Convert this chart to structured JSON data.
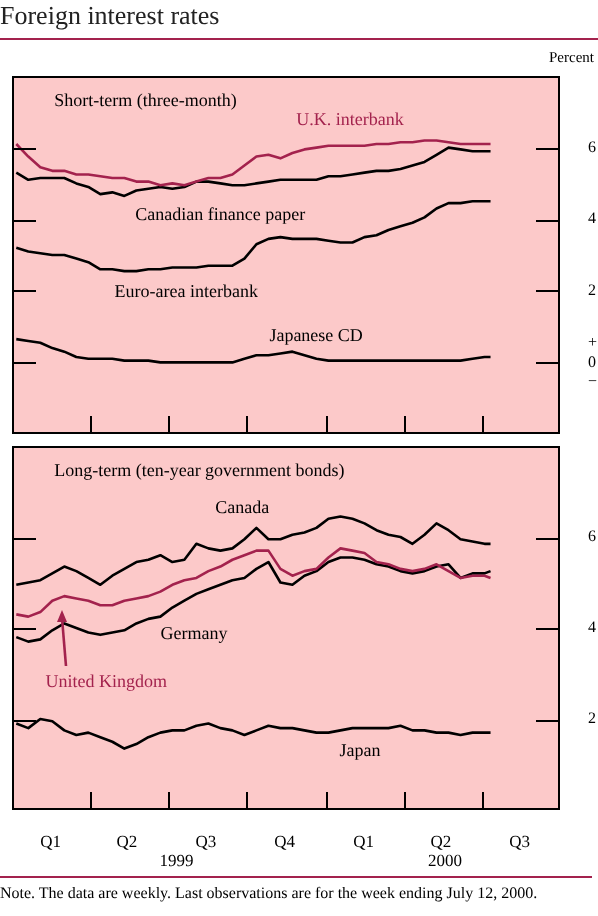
{
  "chart_data": [
    {
      "type": "line",
      "title": "Foreign interest rates",
      "subtitle": "Short-term (three-month)",
      "ylabel": "Percent",
      "x": [
        "1999-01-06",
        "1999-01-20",
        "1999-02-03",
        "1999-02-17",
        "1999-03-03",
        "1999-03-17",
        "1999-03-31",
        "1999-04-14",
        "1999-04-28",
        "1999-05-12",
        "1999-05-26",
        "1999-06-09",
        "1999-06-23",
        "1999-07-07",
        "1999-07-21",
        "1999-08-04",
        "1999-08-18",
        "1999-09-01",
        "1999-09-15",
        "1999-09-29",
        "1999-10-13",
        "1999-10-27",
        "1999-11-10",
        "1999-11-24",
        "1999-12-08",
        "1999-12-22",
        "2000-01-05",
        "2000-01-19",
        "2000-02-02",
        "2000-02-16",
        "2000-03-01",
        "2000-03-15",
        "2000-03-29",
        "2000-04-12",
        "2000-04-26",
        "2000-05-10",
        "2000-05-24",
        "2000-06-07",
        "2000-06-21",
        "2000-07-05",
        "2000-07-12"
      ],
      "series": [
        {
          "name": "U.K. interbank",
          "color": "#a3224d",
          "values": [
            6.1,
            5.75,
            5.45,
            5.35,
            5.35,
            5.25,
            5.25,
            5.2,
            5.15,
            5.15,
            5.05,
            5.05,
            4.95,
            5.0,
            4.95,
            5.05,
            5.15,
            5.15,
            5.25,
            5.5,
            5.75,
            5.8,
            5.7,
            5.85,
            5.95,
            6.0,
            6.05,
            6.05,
            6.05,
            6.05,
            6.1,
            6.1,
            6.15,
            6.15,
            6.2,
            6.2,
            6.15,
            6.1,
            6.1,
            6.1,
            6.1
          ]
        },
        {
          "name": "Canadian finance paper",
          "color": "#000000",
          "values": [
            5.3,
            5.1,
            5.15,
            5.15,
            5.15,
            5.0,
            4.9,
            4.7,
            4.75,
            4.65,
            4.8,
            4.85,
            4.9,
            4.85,
            4.9,
            5.05,
            5.05,
            5.0,
            4.95,
            4.95,
            5.0,
            5.05,
            5.1,
            5.1,
            5.1,
            5.1,
            5.2,
            5.2,
            5.25,
            5.3,
            5.35,
            5.35,
            5.4,
            5.5,
            5.6,
            5.8,
            6.0,
            5.95,
            5.9,
            5.9,
            5.9
          ]
        },
        {
          "name": "Euro-area interbank",
          "color": "#000000",
          "values": [
            3.2,
            3.1,
            3.05,
            3.0,
            3.0,
            2.9,
            2.8,
            2.6,
            2.6,
            2.55,
            2.55,
            2.6,
            2.6,
            2.65,
            2.65,
            2.65,
            2.7,
            2.7,
            2.7,
            2.9,
            3.3,
            3.45,
            3.5,
            3.45,
            3.45,
            3.45,
            3.4,
            3.35,
            3.35,
            3.5,
            3.55,
            3.7,
            3.8,
            3.9,
            4.05,
            4.3,
            4.45,
            4.45,
            4.5,
            4.5,
            4.5
          ]
        },
        {
          "name": "Japanese CD",
          "color": "#000000",
          "values": [
            0.65,
            0.6,
            0.55,
            0.4,
            0.3,
            0.15,
            0.1,
            0.1,
            0.1,
            0.05,
            0.05,
            0.05,
            0.0,
            0.0,
            0.0,
            0.0,
            0.0,
            0.0,
            0.0,
            0.1,
            0.2,
            0.2,
            0.25,
            0.3,
            0.2,
            0.1,
            0.05,
            0.05,
            0.05,
            0.05,
            0.05,
            0.05,
            0.05,
            0.05,
            0.05,
            0.05,
            0.05,
            0.05,
            0.1,
            0.15,
            0.15
          ]
        }
      ],
      "xlim": [
        "1999-01-01",
        "2000-10-01"
      ],
      "xticks": [
        {
          "value": "1999-04-01",
          "label": null
        },
        {
          "value": "1999-07-01",
          "label": null
        },
        {
          "value": "1999-10-01",
          "label": null
        },
        {
          "value": "2000-01-01",
          "label": null
        },
        {
          "value": "2000-04-01",
          "label": null
        },
        {
          "value": "2000-07-01",
          "label": null
        }
      ],
      "ylim": [
        -2,
        8
      ],
      "yticks": [
        {
          "value": 0,
          "label": "+\n0\n−"
        },
        2,
        4,
        6
      ],
      "tick_labels": "y",
      "legend": false
    },
    {
      "type": "line",
      "subtitle": "Long-term (ten-year government bonds)",
      "x": [
        "1999-01-06",
        "1999-01-20",
        "1999-02-03",
        "1999-02-17",
        "1999-03-03",
        "1999-03-17",
        "1999-03-31",
        "1999-04-14",
        "1999-04-28",
        "1999-05-12",
        "1999-05-26",
        "1999-06-09",
        "1999-06-23",
        "1999-07-07",
        "1999-07-21",
        "1999-08-04",
        "1999-08-18",
        "1999-09-01",
        "1999-09-15",
        "1999-09-29",
        "1999-10-13",
        "1999-10-27",
        "1999-11-10",
        "1999-11-24",
        "1999-12-08",
        "1999-12-22",
        "2000-01-05",
        "2000-01-19",
        "2000-02-02",
        "2000-02-16",
        "2000-03-01",
        "2000-03-15",
        "2000-03-29",
        "2000-04-12",
        "2000-04-26",
        "2000-05-10",
        "2000-05-24",
        "2000-06-07",
        "2000-06-21",
        "2000-07-05",
        "2000-07-12"
      ],
      "series": [
        {
          "name": "Canada",
          "color": "#000000",
          "values": [
            4.95,
            5.0,
            5.05,
            5.2,
            5.35,
            5.25,
            5.1,
            4.95,
            5.15,
            5.3,
            5.45,
            5.5,
            5.6,
            5.45,
            5.5,
            5.85,
            5.75,
            5.7,
            5.75,
            5.95,
            6.2,
            5.95,
            5.95,
            6.05,
            6.1,
            6.2,
            6.4,
            6.45,
            6.4,
            6.3,
            6.15,
            6.05,
            6.0,
            5.85,
            6.05,
            6.3,
            6.15,
            5.95,
            5.9,
            5.85,
            5.85
          ]
        },
        {
          "name": "United Kingdom",
          "color": "#a3224d",
          "values": [
            4.3,
            4.25,
            4.35,
            4.6,
            4.7,
            4.65,
            4.6,
            4.5,
            4.5,
            4.6,
            4.65,
            4.7,
            4.8,
            4.95,
            5.05,
            5.1,
            5.25,
            5.35,
            5.5,
            5.6,
            5.7,
            5.7,
            5.3,
            5.15,
            5.25,
            5.3,
            5.55,
            5.75,
            5.7,
            5.65,
            5.45,
            5.4,
            5.3,
            5.25,
            5.3,
            5.4,
            5.25,
            5.1,
            5.15,
            5.15,
            5.1
          ]
        },
        {
          "name": "Germany",
          "color": "#000000",
          "values": [
            3.8,
            3.7,
            3.75,
            3.95,
            4.1,
            4.0,
            3.9,
            3.85,
            3.9,
            3.95,
            4.1,
            4.2,
            4.25,
            4.45,
            4.6,
            4.75,
            4.85,
            4.95,
            5.05,
            5.1,
            5.3,
            5.45,
            5.0,
            4.95,
            5.15,
            5.25,
            5.45,
            5.55,
            5.55,
            5.5,
            5.4,
            5.35,
            5.25,
            5.2,
            5.25,
            5.35,
            5.4,
            5.1,
            5.2,
            5.2,
            5.25
          ]
        },
        {
          "name": "Japan",
          "color": "#000000",
          "values": [
            1.9,
            1.8,
            2.0,
            1.95,
            1.75,
            1.65,
            1.7,
            1.6,
            1.5,
            1.35,
            1.45,
            1.6,
            1.7,
            1.75,
            1.75,
            1.85,
            1.9,
            1.8,
            1.75,
            1.65,
            1.75,
            1.85,
            1.8,
            1.8,
            1.75,
            1.7,
            1.7,
            1.75,
            1.8,
            1.8,
            1.8,
            1.8,
            1.85,
            1.75,
            1.75,
            1.7,
            1.7,
            1.65,
            1.7,
            1.7,
            1.7
          ]
        }
      ],
      "xlim": [
        "1999-01-01",
        "2000-10-01"
      ],
      "xticks": [
        {
          "value": "1999-02-15",
          "label": "Q1"
        },
        {
          "value": "1999-04-01",
          "label": null
        },
        {
          "value": "1999-05-15",
          "label": "Q2"
        },
        {
          "value": "1999-07-01",
          "label": null
        },
        {
          "value": "1999-08-15",
          "label": "Q3"
        },
        {
          "value": "1999-10-01",
          "label": null
        },
        {
          "value": "1999-11-15",
          "label": "Q4"
        },
        {
          "value": "2000-01-01",
          "label": null
        },
        {
          "value": "2000-02-15",
          "label": "Q1"
        },
        {
          "value": "2000-04-01",
          "label": null
        },
        {
          "value": "2000-05-15",
          "label": "Q2"
        },
        {
          "value": "2000-07-01",
          "label": null
        },
        {
          "value": "2000-08-15",
          "label": "Q3"
        }
      ],
      "ylim": [
        0,
        8
      ],
      "yticks": [
        2,
        4,
        6
      ],
      "annotations": [
        "1999",
        "2000",
        "Note. The data are weekly. Last observations are for the week ending July 12, 2000."
      ],
      "legend": false
    }
  ]
}
